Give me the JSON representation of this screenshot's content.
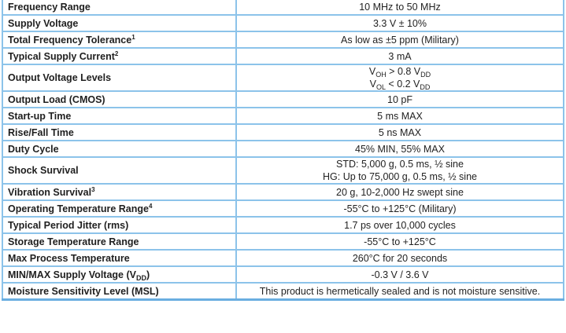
{
  "table": {
    "rows": [
      {
        "param": "Frequency Range",
        "value": "10 MHz to 50 MHz"
      },
      {
        "param": "Supply Voltage",
        "value": "3.3 V ± 10%"
      },
      {
        "param": "Total Frequency Tolerance",
        "sup": "1",
        "value": "As low as ±5 ppm (Military)"
      },
      {
        "param": "Typical Supply Current",
        "sup": "2",
        "value": "3 mA"
      },
      {
        "param": "Output Voltage Levels",
        "value_lines": [
          {
            "v": "V",
            "sub": "OH",
            "rest": " > 0.8 V",
            "sub2": "DD"
          },
          {
            "v": "V",
            "sub": "OL",
            "rest": " < 0.2 V",
            "sub2": "DD"
          }
        ]
      },
      {
        "param": "Output Load (CMOS)",
        "value": "10 pF"
      },
      {
        "param": "Start-up Time",
        "value": "5 ms MAX"
      },
      {
        "param": "Rise/Fall Time",
        "value": "5 ns MAX"
      },
      {
        "param": "Duty Cycle",
        "value": "45% MIN, 55% MAX"
      },
      {
        "param": "Shock Survival",
        "value_lines_plain": [
          "STD: 5,000 g, 0.5 ms, ½ sine",
          "HG: Up to 75,000 g, 0.5 ms, ½ sine"
        ]
      },
      {
        "param": "Vibration Survival",
        "sup": "3",
        "value": "20 g, 10-2,000 Hz swept sine"
      },
      {
        "param": "Operating Temperature Range",
        "sup": "4",
        "value": "-55°C to +125°C (Military)"
      },
      {
        "param": "Typical Period Jitter (rms)",
        "value": "1.7 ps over 10,000 cycles"
      },
      {
        "param": "Storage Temperature Range",
        "value": "-55°C to +125°C"
      },
      {
        "param": "Max Process Temperature",
        "value": "260°C for 20 seconds"
      },
      {
        "param": "MIN/MAX Supply Voltage (V",
        "sub": "DD",
        "param_end": ")",
        "value": "-0.3 V / 3.6 V"
      },
      {
        "param": "Moisture Sensitivity Level (MSL)",
        "value": "This product is hermetically sealed and is not moisture sensitive."
      }
    ]
  },
  "colors": {
    "border": "#8cc3ea"
  }
}
